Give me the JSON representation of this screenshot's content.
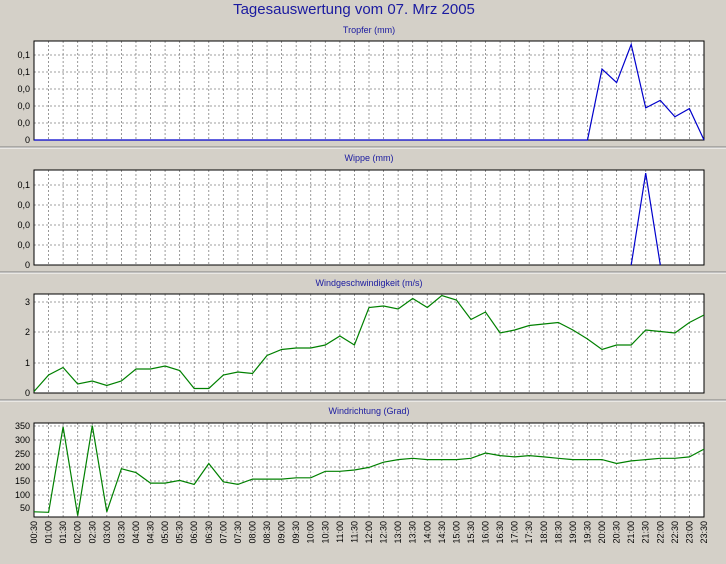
{
  "page": {
    "title": "Tagesauswertung vom 07. Mrz 2005"
  },
  "colors": {
    "blue_series": "#0000cc",
    "green_series": "#008000",
    "title_color": "#1a1aa0",
    "background": "#d4d0c8",
    "plot_background": "#ffffff"
  },
  "chart_data": [
    {
      "type": "line",
      "title": "Tropfer (mm)",
      "xlabel": "",
      "ylabel": "",
      "grid": true,
      "x": [
        0,
        1,
        2,
        3,
        4,
        5,
        6,
        7,
        8,
        9,
        10,
        11,
        12,
        13,
        14,
        15,
        16,
        17,
        18,
        19,
        20,
        21,
        22,
        23,
        24,
        25,
        26,
        27,
        28,
        29,
        30,
        31,
        32,
        33,
        34,
        35,
        36,
        37,
        38,
        39,
        40,
        41,
        42,
        43,
        44,
        45,
        46
      ],
      "ylim": [
        0,
        0.145
      ],
      "ytick_labels": [
        "0",
        "0,0",
        "0,0",
        "0,0",
        "0,1",
        "0,1"
      ],
      "series": [
        {
          "values": [
            0,
            0,
            0,
            0,
            0,
            0,
            0,
            0,
            0,
            0,
            0,
            0,
            0,
            0,
            0,
            0,
            0,
            0,
            0,
            0,
            0,
            0,
            0,
            0,
            0,
            0,
            0,
            0,
            0,
            0,
            0,
            0,
            0,
            0,
            0,
            0,
            0,
            0,
            0,
            0.104,
            0.084,
            0.14,
            0.047,
            0.058,
            0.034,
            0.046,
            0
          ]
        }
      ]
    },
    {
      "type": "line",
      "title": "Wippe (mm)",
      "xlabel": "",
      "ylabel": "",
      "grid": true,
      "x": [
        0,
        1,
        2,
        3,
        4,
        5,
        6,
        7,
        8,
        9,
        10,
        11,
        12,
        13,
        14,
        15,
        16,
        17,
        18,
        19,
        20,
        21,
        22,
        23,
        24,
        25,
        26,
        27,
        28,
        29,
        30,
        31,
        32,
        33,
        34,
        35,
        36,
        37,
        38,
        39,
        40,
        41,
        42,
        43,
        44,
        45,
        46
      ],
      "ylim": [
        0,
        0.155
      ],
      "ytick_labels": [
        "0",
        "0,0",
        "0,0",
        "0,0",
        "0,1"
      ],
      "series": [
        {
          "values": [
            null,
            null,
            null,
            null,
            null,
            null,
            null,
            null,
            null,
            null,
            null,
            null,
            null,
            null,
            null,
            null,
            null,
            null,
            null,
            null,
            null,
            null,
            null,
            null,
            null,
            null,
            null,
            null,
            null,
            null,
            null,
            null,
            null,
            null,
            null,
            null,
            null,
            null,
            null,
            null,
            null,
            0,
            0.15,
            0,
            null,
            null,
            null
          ]
        }
      ]
    },
    {
      "type": "line",
      "title": "Windgeschwindigkeit (m/s)",
      "xlabel": "",
      "ylabel": "",
      "grid": true,
      "x": [
        0,
        1,
        2,
        3,
        4,
        5,
        6,
        7,
        8,
        9,
        10,
        11,
        12,
        13,
        14,
        15,
        16,
        17,
        18,
        19,
        20,
        21,
        22,
        23,
        24,
        25,
        26,
        27,
        28,
        29,
        30,
        31,
        32,
        33,
        34,
        35,
        36,
        37,
        38,
        39,
        40,
        41,
        42,
        43,
        44,
        45,
        46
      ],
      "ylim": [
        0,
        3.3
      ],
      "ytick_labels": [
        "0",
        "1",
        "2",
        "3"
      ],
      "series": [
        {
          "values": [
            0.05,
            0.6,
            0.85,
            0.3,
            0.4,
            0.25,
            0.4,
            0.8,
            0.8,
            0.9,
            0.75,
            0.15,
            0.15,
            0.6,
            0.7,
            0.65,
            1.25,
            1.45,
            1.5,
            1.5,
            1.6,
            1.9,
            1.6,
            2.85,
            2.9,
            2.8,
            3.15,
            2.85,
            3.25,
            3.1,
            2.45,
            2.7,
            2.0,
            2.1,
            2.25,
            2.3,
            2.35,
            2.1,
            1.8,
            1.45,
            1.6,
            1.6,
            2.1,
            2.05,
            2.0,
            2.35,
            2.6
          ]
        }
      ]
    },
    {
      "type": "line",
      "title": "Windrichtung (Grad)",
      "xlabel": "",
      "ylabel": "",
      "grid": true,
      "x": [
        0,
        1,
        2,
        3,
        4,
        5,
        6,
        7,
        8,
        9,
        10,
        11,
        12,
        13,
        14,
        15,
        16,
        17,
        18,
        19,
        20,
        21,
        22,
        23,
        24,
        25,
        26,
        27,
        28,
        29,
        30,
        31,
        32,
        33,
        34,
        35,
        36,
        37,
        38,
        39,
        40,
        41,
        42,
        43,
        44,
        45,
        46
      ],
      "ylim": [
        0,
        360
      ],
      "ytick_labels": [
        "50",
        "100",
        "150",
        "200",
        "250",
        "300",
        "350"
      ],
      "x_tick_labels": [
        "00:30",
        "01:00",
        "01:30",
        "02:00",
        "02:30",
        "03:00",
        "03:30",
        "04:00",
        "04:30",
        "05:00",
        "05:30",
        "06:00",
        "06:30",
        "07:00",
        "07:30",
        "08:00",
        "08:30",
        "09:00",
        "09:30",
        "10:00",
        "10:30",
        "11:00",
        "11:30",
        "12:00",
        "12:30",
        "13:00",
        "13:30",
        "14:00",
        "14:30",
        "15:00",
        "15:30",
        "16:00",
        "16:30",
        "17:00",
        "17:30",
        "18:00",
        "18:30",
        "19:00",
        "19:30",
        "20:00",
        "20:30",
        "21:00",
        "21:30",
        "22:00",
        "22:30",
        "23:00",
        "23:30"
      ],
      "series": [
        {
          "values": [
            20,
            18,
            345,
            5,
            350,
            20,
            185,
            170,
            130,
            130,
            140,
            125,
            205,
            135,
            125,
            145,
            145,
            145,
            150,
            150,
            175,
            175,
            180,
            190,
            210,
            220,
            225,
            220,
            220,
            220,
            225,
            245,
            235,
            230,
            235,
            230,
            225,
            220,
            220,
            220,
            205,
            215,
            220,
            225,
            225,
            230,
            260
          ]
        }
      ]
    }
  ]
}
